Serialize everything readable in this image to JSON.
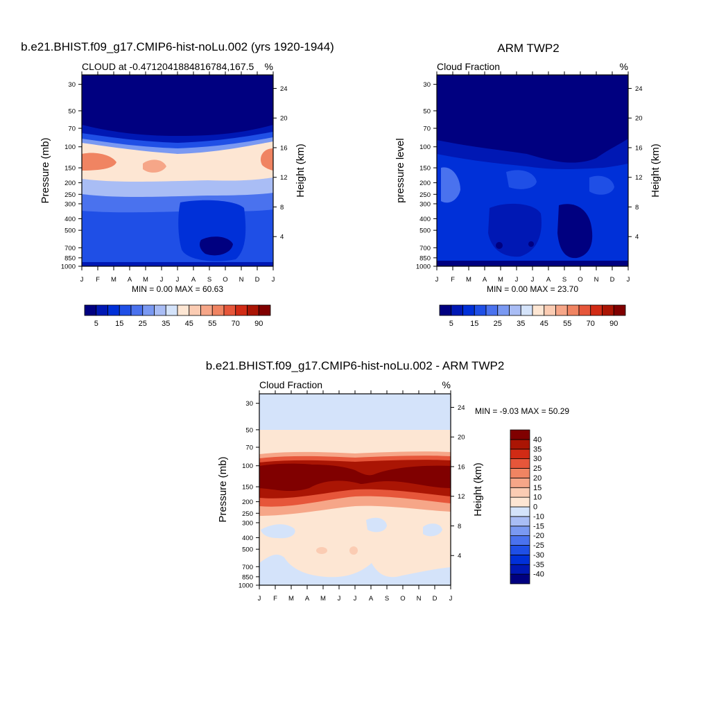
{
  "chart_data": [
    {
      "type": "heatmap",
      "title": "b.e21.BHIST.f09_g17.CMIP6-hist-noLu.002 (yrs 1920-1944)",
      "subtitle_left": "CLOUD at -0.4712041884816784,167.5",
      "subtitle_right": "%",
      "ylabel": "Pressure (mb)",
      "ylabel_right": "Height (km)",
      "x_ticks": [
        "J",
        "F",
        "M",
        "A",
        "M",
        "J",
        "J",
        "A",
        "S",
        "O",
        "N",
        "D",
        "J"
      ],
      "y_ticks": [
        30,
        50,
        70,
        100,
        150,
        200,
        250,
        300,
        400,
        500,
        700,
        850,
        1000
      ],
      "y_ticks_right": [
        24,
        20,
        16,
        12,
        8,
        4
      ],
      "ylim": [
        1000,
        25
      ],
      "stats": "MIN =   0.00 MAX =  60.63",
      "levels": [
        5,
        10,
        15,
        20,
        25,
        30,
        35,
        40,
        45,
        50,
        55,
        60,
        70,
        80,
        90
      ],
      "colorbar_labels": [
        "5",
        "15",
        "25",
        "35",
        "45",
        "55",
        "70",
        "90"
      ],
      "colors": [
        "#000080",
        "#0018b4",
        "#0030d8",
        "#1f4fe6",
        "#4a72ee",
        "#7a99f2",
        "#a9bdf5",
        "#d4e3fa",
        "#fde6d3",
        "#fbccb3",
        "#f6a688",
        "#f08462",
        "#e6563a",
        "#d12b15",
        "#aa1504",
        "#800000"
      ]
    },
    {
      "type": "heatmap",
      "title": "ARM TWP2",
      "subtitle_left": "Cloud Fraction",
      "subtitle_right": "%",
      "ylabel": "pressure level",
      "ylabel_right": "Height (km)",
      "x_ticks": [
        "J",
        "F",
        "M",
        "A",
        "M",
        "J",
        "J",
        "A",
        "S",
        "O",
        "N",
        "D",
        "J"
      ],
      "y_ticks": [
        30,
        50,
        70,
        100,
        150,
        200,
        250,
        300,
        400,
        500,
        700,
        850,
        1000
      ],
      "y_ticks_right": [
        24,
        20,
        16,
        12,
        8,
        4
      ],
      "ylim": [
        1000,
        25
      ],
      "stats": "MIN =   0.00 MAX =  23.70",
      "levels": [
        5,
        10,
        15,
        20,
        25,
        30,
        35,
        40,
        45,
        50,
        55,
        60,
        70,
        80,
        90
      ],
      "colorbar_labels": [
        "5",
        "15",
        "25",
        "35",
        "45",
        "55",
        "70",
        "90"
      ],
      "colors": [
        "#000080",
        "#0018b4",
        "#0030d8",
        "#1f4fe6",
        "#4a72ee",
        "#7a99f2",
        "#a9bdf5",
        "#d4e3fa",
        "#fde6d3",
        "#fbccb3",
        "#f6a688",
        "#f08462",
        "#e6563a",
        "#d12b15",
        "#aa1504",
        "#800000"
      ]
    },
    {
      "type": "heatmap",
      "title": "b.e21.BHIST.f09_g17.CMIP6-hist-noLu.002 - ARM TWP2",
      "subtitle_left": "Cloud Fraction",
      "subtitle_right": "%",
      "ylabel": "Pressure (mb)",
      "ylabel_right": "Height (km)",
      "x_ticks": [
        "J",
        "F",
        "M",
        "A",
        "M",
        "J",
        "J",
        "A",
        "S",
        "O",
        "N",
        "D",
        "J"
      ],
      "y_ticks": [
        30,
        50,
        70,
        100,
        150,
        200,
        250,
        300,
        400,
        500,
        700,
        850,
        1000
      ],
      "y_ticks_right": [
        24,
        20,
        16,
        12,
        8,
        4
      ],
      "ylim": [
        1000,
        25
      ],
      "stats": "MIN =  -9.03 MAX =  50.29",
      "levels": [
        -40,
        -35,
        -30,
        -25,
        -20,
        -15,
        -10,
        0,
        10,
        15,
        20,
        25,
        30,
        35,
        40
      ],
      "colorbar_labels": [
        "40",
        "35",
        "30",
        "25",
        "20",
        "15",
        "10",
        "0",
        "-10",
        "-15",
        "-20",
        "-25",
        "-30",
        "-35",
        "-40"
      ],
      "colors": [
        "#000080",
        "#0018b4",
        "#0030d8",
        "#1f4fe6",
        "#4a72ee",
        "#7a99f2",
        "#a9bdf5",
        "#d4e3fa",
        "#fde6d3",
        "#fbccb3",
        "#f6a688",
        "#f08462",
        "#e6563a",
        "#d12b15",
        "#aa1504",
        "#800000"
      ]
    }
  ]
}
